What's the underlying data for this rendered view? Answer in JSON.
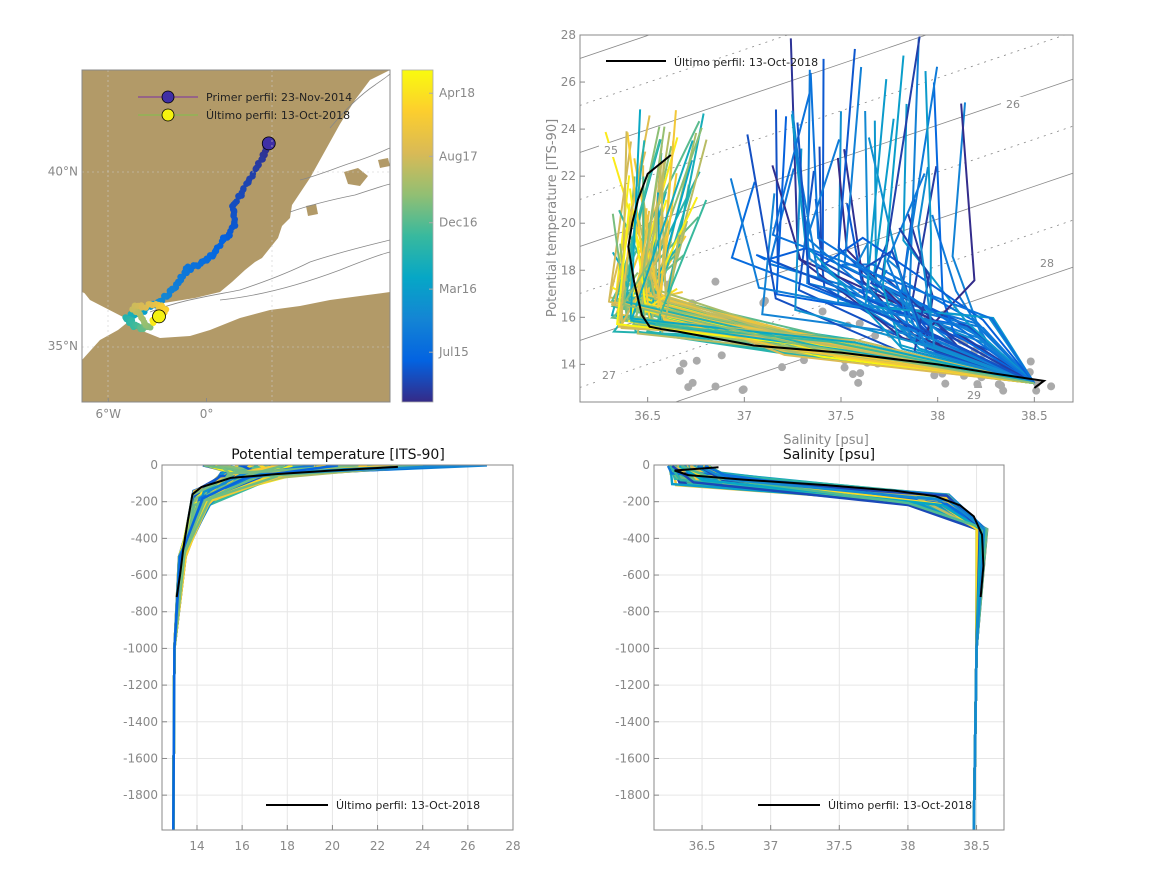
{
  "figure": {
    "colorbar_colors": [
      "#352a87",
      "#0363e1",
      "#1485d4",
      "#06a7c6",
      "#38b99e",
      "#92bf73",
      "#d9ba56",
      "#fcce2e",
      "#f9fb0e"
    ]
  },
  "chart_data": [
    {
      "id": "map",
      "type": "scatter",
      "title": "",
      "xlabel": "",
      "ylabel": "",
      "xlim": [
        -7.6,
        11.2
      ],
      "ylim": [
        33.4,
        42.9
      ],
      "xticks": [
        {
          "v": -6,
          "label": "6°W"
        },
        {
          "v": 0,
          "label": "0°"
        }
      ],
      "yticks": [
        {
          "v": 40,
          "label": "40°N"
        },
        {
          "v": 35,
          "label": "35°N"
        }
      ],
      "legend": {
        "placement": "top",
        "entries": [
          {
            "label": "Primer perfil: 23-Nov-2014",
            "color": "#3f2fa6",
            "line_color": "#7b2fa6"
          },
          {
            "label": "Último perfil: 13-Oct-2018",
            "color": "#f5f20f",
            "line_color": "#7fc34a"
          }
        ]
      },
      "first_profile": {
        "lon": 3.8,
        "lat": 40.8
      },
      "last_profile": {
        "lon": -2.9,
        "lat": 35.85
      },
      "track": [
        {
          "lon": 3.8,
          "lat": 40.8,
          "t": 0.0
        },
        {
          "lon": 3.3,
          "lat": 40.3,
          "t": 0.03
        },
        {
          "lon": 2.4,
          "lat": 39.6,
          "t": 0.06
        },
        {
          "lon": 1.6,
          "lat": 39.0,
          "t": 0.08
        },
        {
          "lon": 1.7,
          "lat": 38.4,
          "t": 0.1
        },
        {
          "lon": 0.8,
          "lat": 37.9,
          "t": 0.13
        },
        {
          "lon": 0.0,
          "lat": 37.4,
          "t": 0.16
        },
        {
          "lon": -1.2,
          "lat": 37.2,
          "t": 0.19
        },
        {
          "lon": -1.9,
          "lat": 36.7,
          "t": 0.22
        },
        {
          "lon": -2.8,
          "lat": 36.3,
          "t": 0.26
        },
        {
          "lon": -3.6,
          "lat": 36.1,
          "t": 0.32
        },
        {
          "lon": -4.9,
          "lat": 35.8,
          "t": 0.45
        },
        {
          "lon": -4.4,
          "lat": 35.6,
          "t": 0.5
        },
        {
          "lon": -3.5,
          "lat": 35.5,
          "t": 0.6
        },
        {
          "lon": -4.5,
          "lat": 36.1,
          "t": 0.72
        },
        {
          "lon": -3.0,
          "lat": 36.2,
          "t": 0.8
        },
        {
          "lon": -2.5,
          "lat": 36.0,
          "t": 0.88
        },
        {
          "lon": -3.3,
          "lat": 35.7,
          "t": 0.94
        },
        {
          "lon": -2.9,
          "lat": 35.85,
          "t": 1.0
        }
      ],
      "colorbar": {
        "ticks": [
          "Jul15",
          "Mar16",
          "Dec16",
          "Aug17",
          "Apr18"
        ],
        "tick_positions": [
          0.15,
          0.34,
          0.54,
          0.74,
          0.93
        ]
      }
    },
    {
      "id": "ts",
      "type": "line",
      "title": "",
      "xlabel": "Salinity [psu]",
      "ylabel": "Potential temperature [ITS-90]",
      "xlim": [
        36.15,
        38.7
      ],
      "ylim": [
        12.4,
        28
      ],
      "xticks": [
        "36.5",
        "37",
        "37.5",
        "38",
        "38.5"
      ],
      "yticks": [
        "14",
        "16",
        "18",
        "20",
        "22",
        "24",
        "26",
        "28"
      ],
      "density_labels": [
        "25",
        "26",
        "27",
        "28",
        "29"
      ],
      "legend": {
        "placement": "top-left",
        "label": "Último perfil: 13-Oct-2018"
      },
      "last_profile": {
        "S": [
          36.62,
          36.5,
          36.45,
          36.42,
          36.4,
          36.43,
          36.47,
          36.51,
          36.57,
          36.65,
          37.05,
          37.5,
          38.0,
          38.3,
          38.55,
          38.5
        ],
        "T": [
          22.9,
          22.1,
          21.0,
          20.0,
          19.0,
          17.5,
          16.1,
          15.6,
          15.5,
          15.4,
          14.8,
          14.5,
          14.0,
          13.6,
          13.3,
          13.0
        ]
      }
    },
    {
      "id": "temp-profile",
      "type": "line",
      "title": "Potential temperature [ITS-90]",
      "xlabel": "",
      "ylabel": "",
      "xlim": [
        12.45,
        28
      ],
      "ylim": [
        -1990,
        0
      ],
      "xticks": [
        "14",
        "16",
        "18",
        "20",
        "22",
        "24",
        "26",
        "28"
      ],
      "yticks": [
        "0",
        "-200",
        "-400",
        "-600",
        "-800",
        "-1000",
        "-1200",
        "-1400",
        "-1600",
        "-1800"
      ],
      "legend": {
        "placement": "bottom-right",
        "label": "Último perfil: 13-Oct-2018"
      },
      "last_profile": {
        "T": [
          22.9,
          20.0,
          17.5,
          15.5,
          15.0,
          14.2,
          13.8,
          13.6,
          13.4,
          13.25,
          13.1
        ],
        "z": [
          -10,
          -30,
          -50,
          -70,
          -90,
          -120,
          -160,
          -300,
          -450,
          -600,
          -720
        ]
      }
    },
    {
      "id": "sal-profile",
      "type": "line",
      "title": "Salinity [psu]",
      "xlabel": "",
      "ylabel": "",
      "xlim": [
        36.15,
        38.7
      ],
      "ylim": [
        -1990,
        0
      ],
      "xticks": [
        "36.5",
        "37",
        "37.5",
        "38",
        "38.5"
      ],
      "yticks": [
        "0",
        "-200",
        "-400",
        "-600",
        "-800",
        "-1000",
        "-1200",
        "-1400",
        "-1600",
        "-1800"
      ],
      "legend": {
        "placement": "bottom-right",
        "label": "Último perfil: 13-Oct-2018"
      },
      "last_profile": {
        "S": [
          36.62,
          36.3,
          36.4,
          36.8,
          37.4,
          37.9,
          38.2,
          38.38,
          38.48,
          38.54,
          38.55,
          38.53
        ],
        "z": [
          -12,
          -30,
          -55,
          -80,
          -110,
          -140,
          -170,
          -220,
          -280,
          -380,
          -550,
          -720
        ]
      }
    }
  ]
}
